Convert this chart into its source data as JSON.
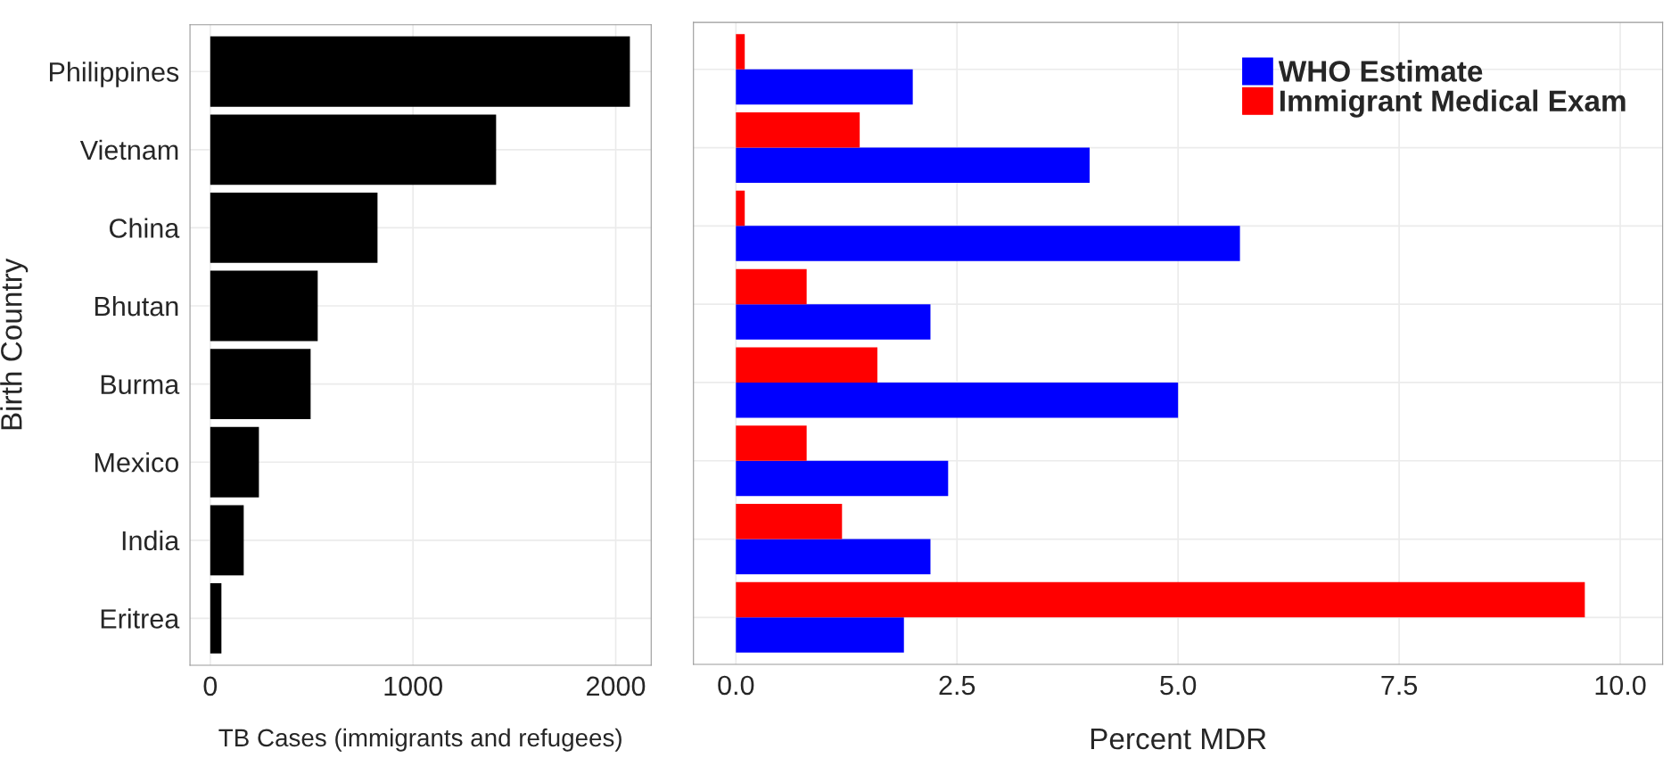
{
  "chart_data": [
    {
      "type": "bar",
      "orientation": "horizontal",
      "ylabel": "Birth Country",
      "xlabel": "TB Cases (immigrants and refugees)",
      "categories": [
        "Philippines",
        "Vietnam",
        "China",
        "Bhutan",
        "Burma",
        "Mexico",
        "India",
        "Eritrea"
      ],
      "values": [
        2070,
        1410,
        825,
        530,
        495,
        240,
        165,
        55
      ],
      "color": "#000000",
      "xlim": [
        -100,
        2175
      ],
      "xticks": [
        0,
        1000,
        2000
      ],
      "grid": true
    },
    {
      "type": "bar",
      "orientation": "horizontal",
      "xlabel": "Percent MDR",
      "categories": [
        null,
        null,
        null,
        null,
        null,
        null,
        null,
        null
      ],
      "series": [
        {
          "name": "WHO Estimate",
          "color": "#0000ff",
          "values": [
            2.0,
            4.0,
            5.7,
            2.2,
            5.0,
            2.4,
            2.2,
            1.9
          ]
        },
        {
          "name": "Immigrant Medical Exam",
          "color": "#ff0000",
          "values": [
            0.1,
            1.4,
            0.1,
            0.8,
            1.6,
            0.8,
            1.2,
            9.6
          ]
        }
      ],
      "xlim": [
        -0.48,
        10.48
      ],
      "xticks": [
        {
          "value": 0,
          "label": "0.0"
        },
        2.5,
        {
          "value": 5,
          "label": "5.0"
        },
        7.5,
        {
          "value": 10,
          "label": "10.0"
        }
      ],
      "grid": true,
      "legend": "top right",
      "tick_labels": "x"
    }
  ]
}
